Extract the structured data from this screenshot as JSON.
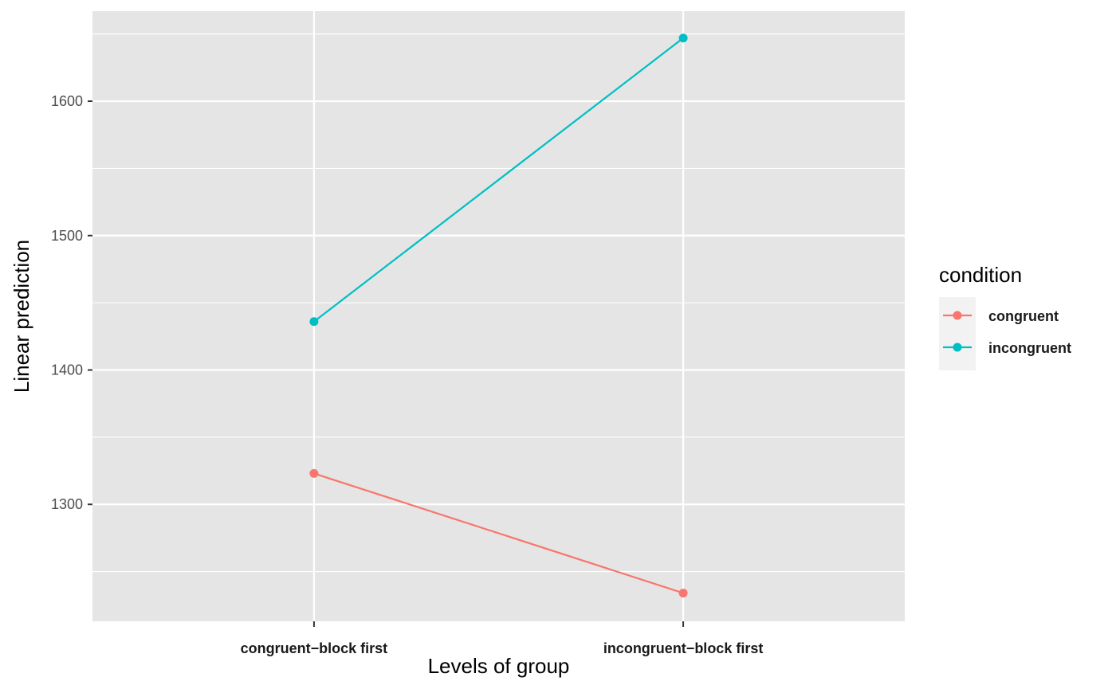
{
  "chart_data": {
    "type": "line",
    "xlabel": "Levels of group",
    "ylabel": "Linear prediction",
    "categories": [
      "congruent−block first",
      "incongruent−block first"
    ],
    "series": [
      {
        "name": "congruent",
        "color": "#F8766D",
        "values": [
          1323,
          1234
        ]
      },
      {
        "name": "incongruent",
        "color": "#00BFC4",
        "values": [
          1436,
          1647
        ]
      }
    ],
    "ylim": [
      1213,
      1667
    ],
    "yticks": [
      1300,
      1400,
      1500,
      1600
    ],
    "ytick_labels": [
      "1300",
      "1400",
      "1500",
      "1600"
    ],
    "grid": true,
    "legend": {
      "title": "condition",
      "position": "right"
    },
    "panel_color": "#E5E5E5",
    "grid_color": "#FFFFFF"
  }
}
